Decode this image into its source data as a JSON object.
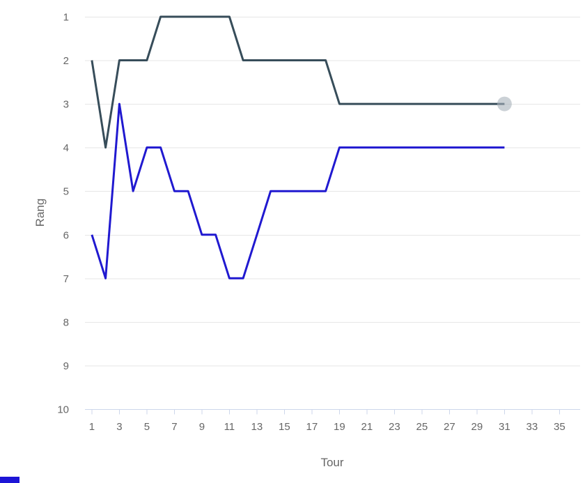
{
  "chart_data": {
    "type": "line",
    "title": "",
    "xlabel": "Tour",
    "ylabel": "Rang",
    "x_tick_labels": [
      1,
      3,
      5,
      7,
      9,
      11,
      13,
      15,
      17,
      19,
      21,
      23,
      25,
      27,
      29,
      31,
      33,
      35
    ],
    "y_tick_labels": [
      1,
      2,
      3,
      4,
      5,
      6,
      7,
      8,
      9,
      10
    ],
    "x_range": [
      0.5,
      36.5
    ],
    "y_range": [
      1,
      10
    ],
    "y_inverted": true,
    "grid": "horizontal",
    "legend": "none",
    "x_start": 1,
    "x_step": 1,
    "series": [
      {
        "id": "dark",
        "color": "#374d5a",
        "values": [
          2,
          4,
          2,
          2,
          2,
          1,
          1,
          1,
          1,
          1,
          1,
          2,
          2,
          2,
          2,
          2,
          2,
          2,
          3,
          3,
          3,
          3,
          3,
          3,
          3,
          3,
          3,
          3,
          3,
          3,
          3
        ],
        "end_marker": {
          "shape": "circle",
          "color": "#a8b2ba",
          "opacity": 0.6,
          "radius": 10.5
        }
      },
      {
        "id": "blue",
        "color": "#2019d0",
        "values": [
          6,
          7,
          3,
          5,
          4,
          4,
          5,
          5,
          6,
          6,
          7,
          7,
          6,
          5,
          5,
          5,
          5,
          5,
          4,
          4,
          4,
          4,
          4,
          4,
          4,
          4,
          4,
          4,
          4,
          4,
          4
        ],
        "end_marker": null
      }
    ],
    "colors": {
      "grid": "#e6e6e6",
      "axis": "#ccd6eb",
      "tick": "#ccd6eb",
      "label": "#666666"
    }
  },
  "fragments": {
    "bottom_left": {
      "color": "#1d15d6"
    }
  }
}
